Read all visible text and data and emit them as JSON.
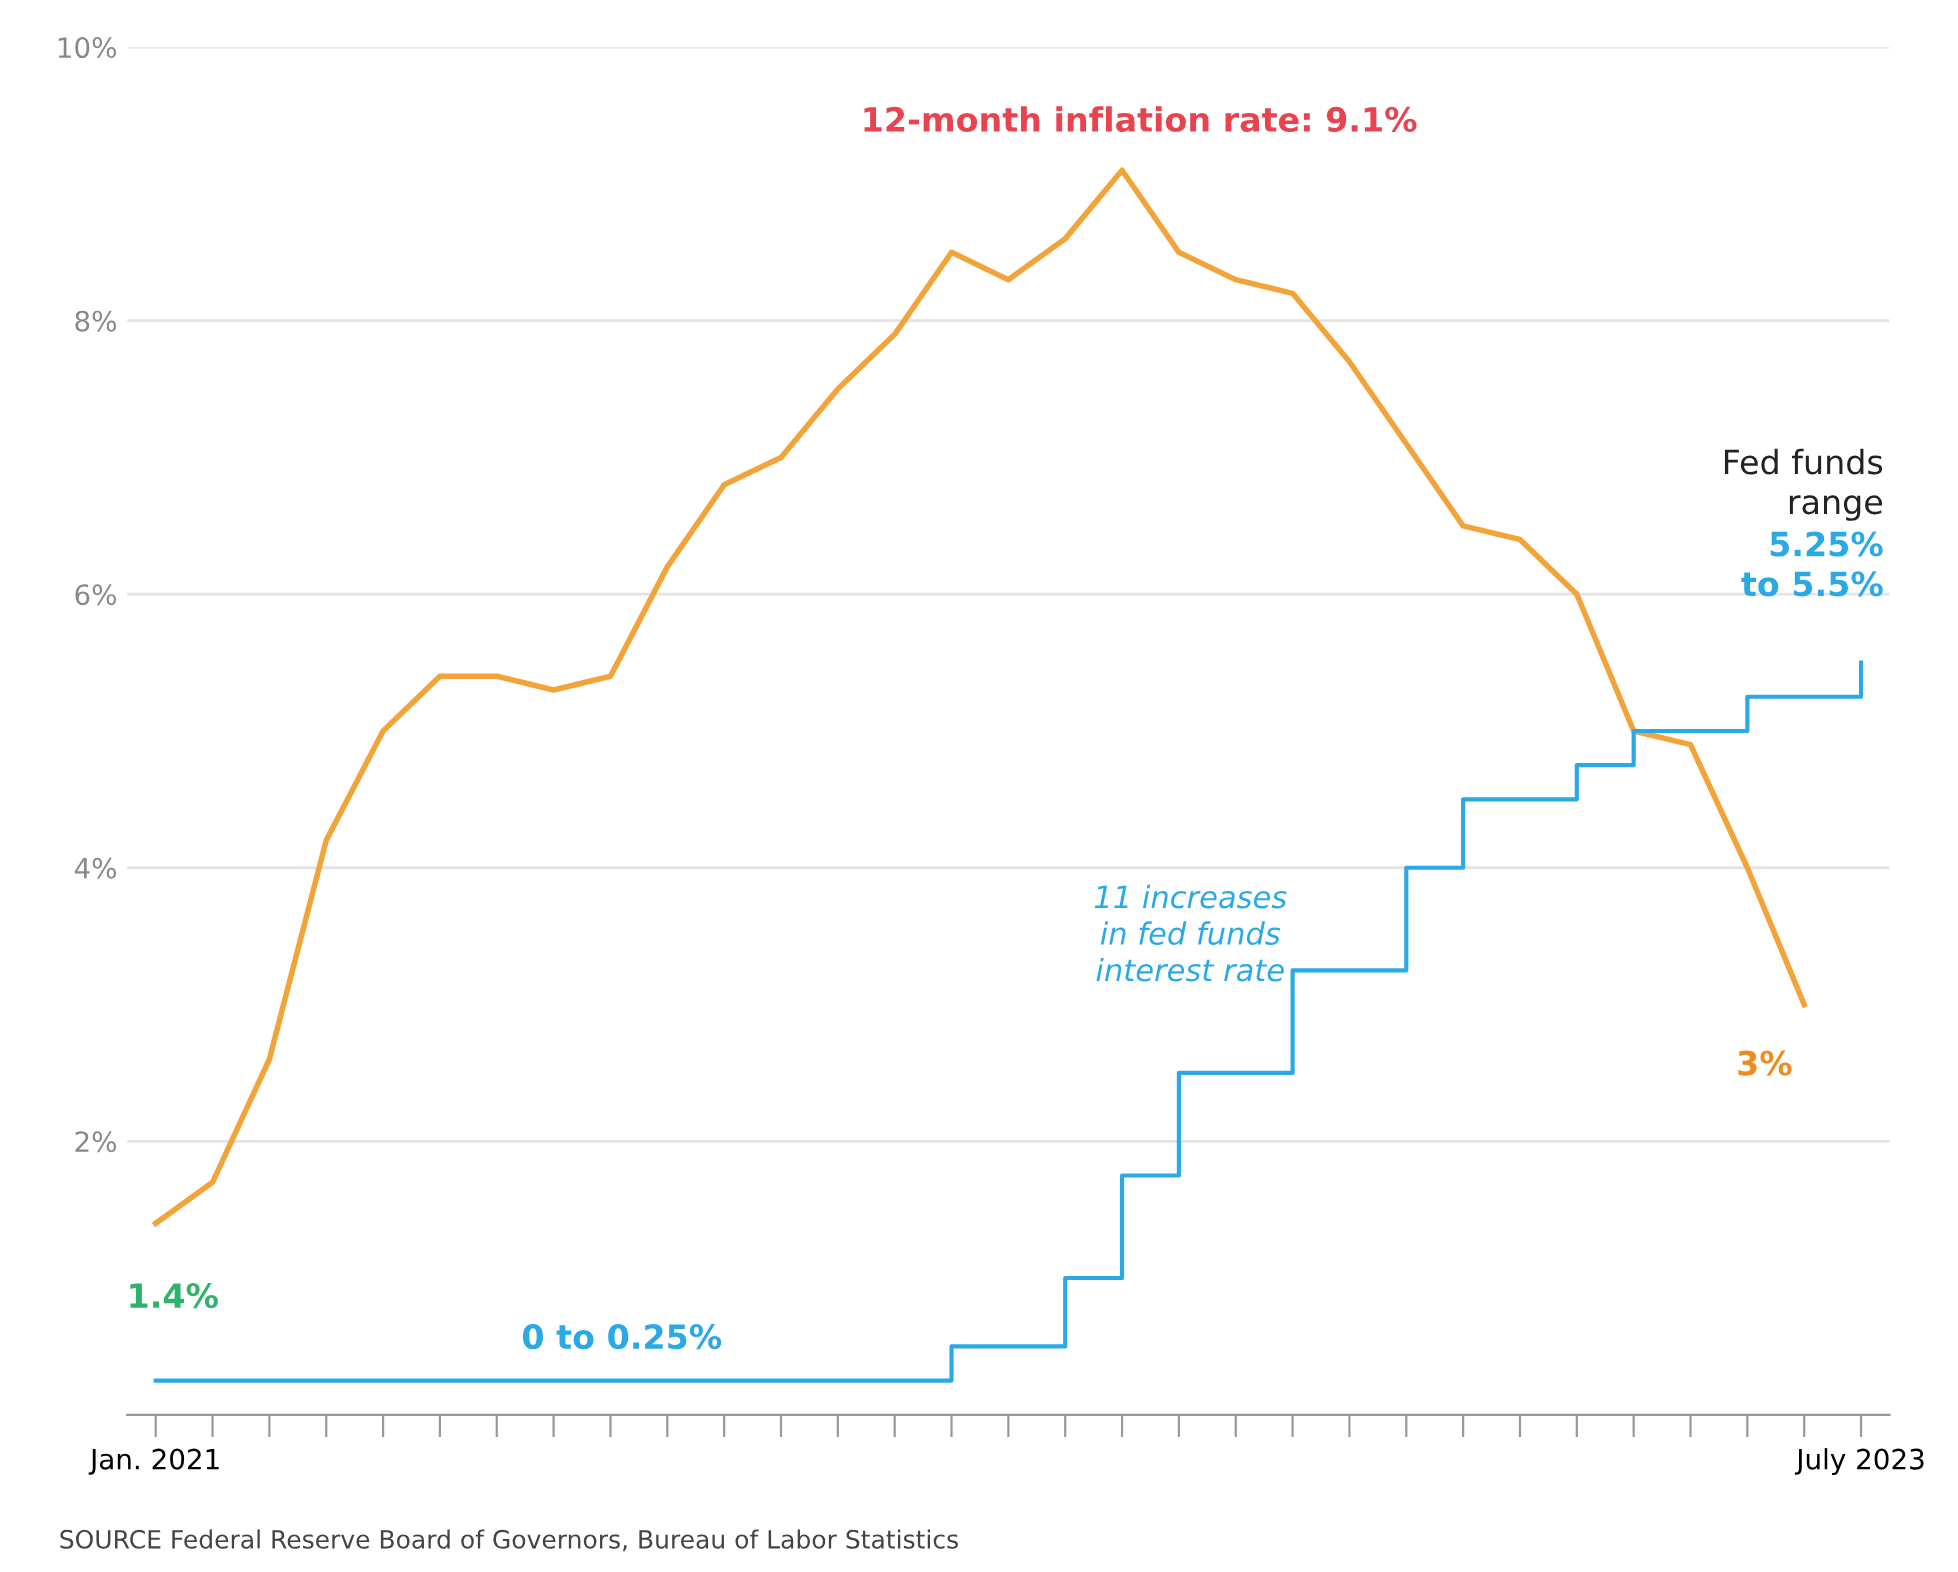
{
  "chart_data": {
    "type": "line",
    "categories": [
      "Jan. 2021",
      null,
      null,
      null,
      null,
      null,
      null,
      null,
      null,
      null,
      null,
      null,
      null,
      null,
      null,
      null,
      null,
      null,
      null,
      null,
      null,
      null,
      null,
      null,
      null,
      null,
      null,
      null,
      null,
      null,
      "July 2023"
    ],
    "series": [
      {
        "color": "#f2a43a",
        "values": [
          1.4,
          1.7,
          2.6,
          4.2,
          5.0,
          5.4,
          5.4,
          5.3,
          5.4,
          6.2,
          6.8,
          7.0,
          7.5,
          7.9,
          8.5,
          8.3,
          8.6,
          9.1,
          8.5,
          8.3,
          8.2,
          7.7,
          7.1,
          6.5,
          6.4,
          6.0,
          5.0,
          4.9,
          4.0,
          3.0,
          null
        ]
      },
      {
        "type": "step",
        "color": "#2aa9e6",
        "values": [
          0.25,
          0.25,
          0.25,
          0.25,
          0.25,
          0.25,
          0.25,
          0.25,
          0.25,
          0.25,
          0.25,
          0.25,
          0.25,
          0.25,
          0.5,
          0.5,
          1.0,
          1.75,
          2.5,
          2.5,
          3.25,
          3.25,
          4.0,
          4.5,
          4.5,
          4.75,
          5.0,
          5.0,
          5.25,
          5.25,
          5.5
        ]
      }
    ],
    "ylim": [
      0,
      10
    ],
    "yticks": [
      {
        "value": 2,
        "label": "2%"
      },
      {
        "value": 4,
        "label": "4%"
      },
      {
        "value": 6,
        "label": "6%"
      },
      {
        "value": 8,
        "label": "8%"
      },
      {
        "value": 10,
        "label": "10%"
      }
    ],
    "grid": "y",
    "legend": false,
    "annotations": [
      "12-month inflation rate: 9.1%",
      "1.4%",
      "3%",
      "Fed funds\nrange",
      "5.25%\nto 5.5%",
      "11 increases\nin fed funds\ninterest rate",
      "0 to 0.25%",
      "SOURCE Federal Reserve Board of Governors, Bureau of Labor Statistics"
    ]
  }
}
